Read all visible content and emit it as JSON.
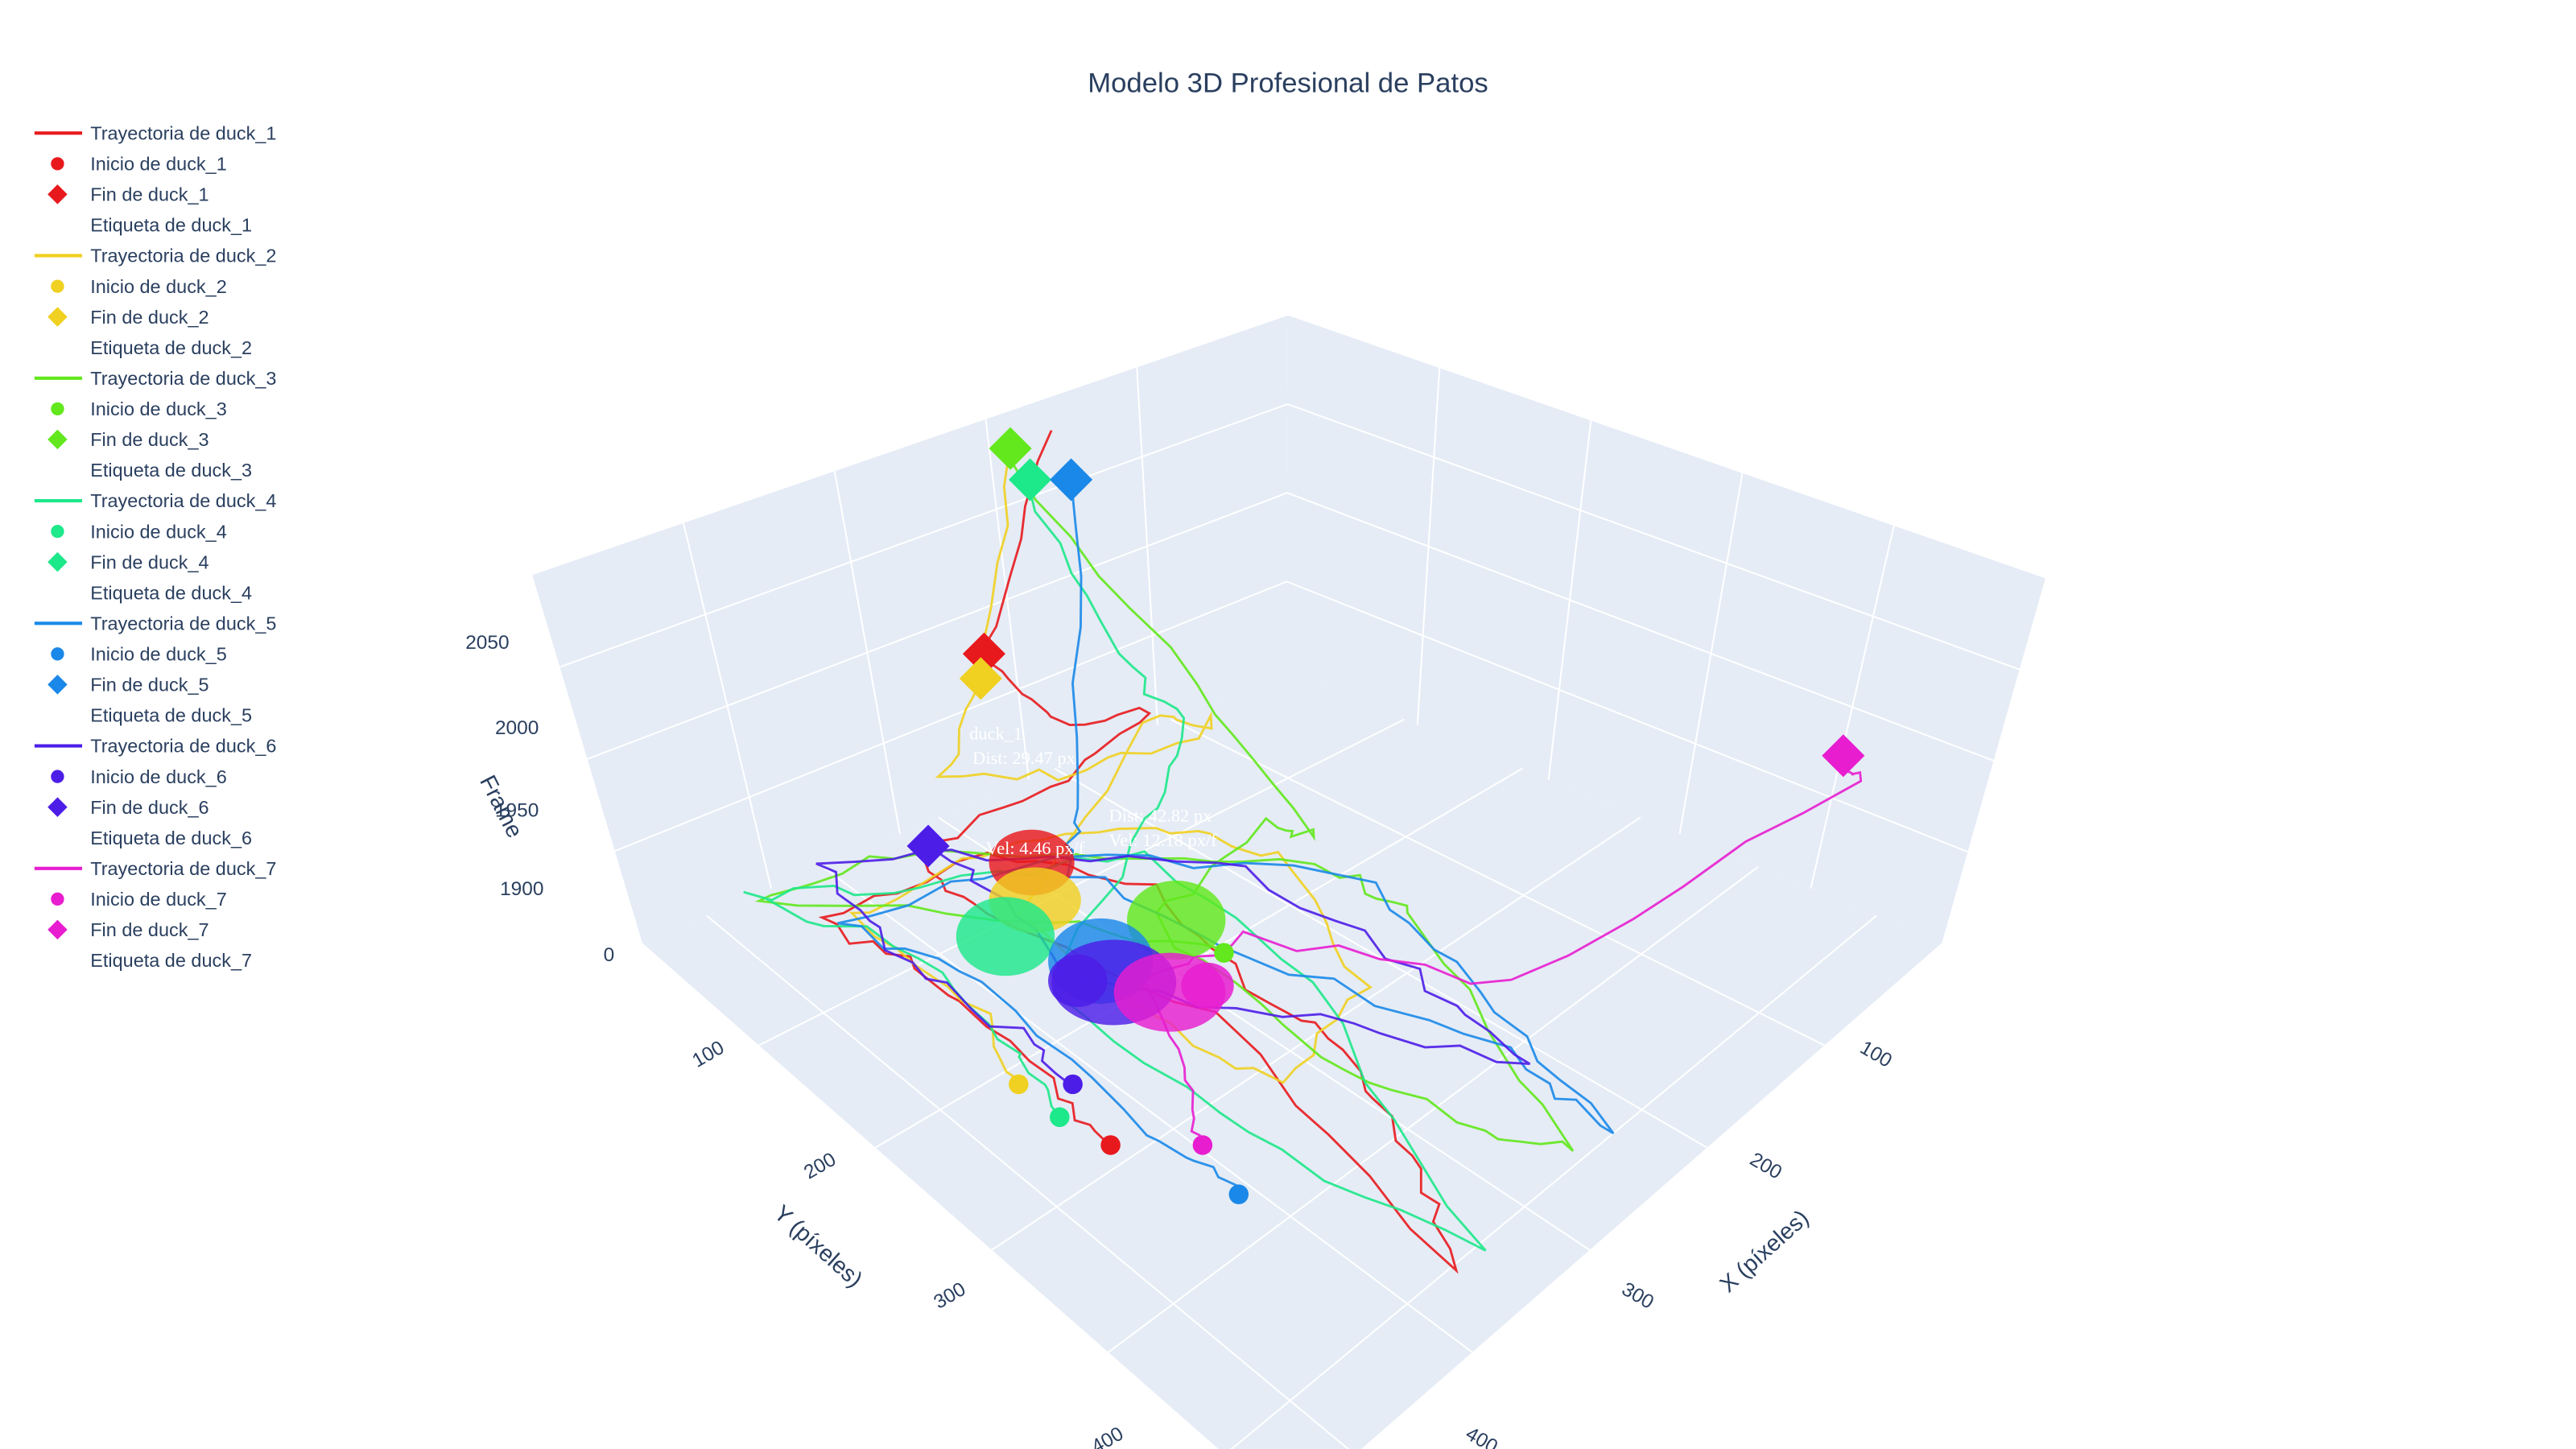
{
  "chart_data": {
    "type": "scatter3d",
    "title": "Modelo 3D Profesional de Patos",
    "axes": {
      "x": {
        "title": "X (píxeles)",
        "ticks": [
          "100",
          "200",
          "300",
          "400"
        ]
      },
      "y": {
        "title": "Y (píxeles)",
        "ticks": [
          "100",
          "200",
          "300",
          "400"
        ]
      },
      "z": {
        "title": "Frame",
        "ticks": [
          "0",
          "1900",
          "1950",
          "2000",
          "2050"
        ]
      }
    },
    "legend_position": "top-left",
    "background": "#e5ecf6",
    "grid": true,
    "series": [
      {
        "name": "duck_1",
        "color": "#e8191d",
        "labels": {
          "trajectory": "Trayectoria de duck_1",
          "start": "Inicio de duck_1",
          "end": "Fin de duck_1",
          "tag": "Etiqueta de duck_1"
        }
      },
      {
        "name": "duck_2",
        "color": "#f0d020",
        "labels": {
          "trajectory": "Trayectoria de duck_2",
          "start": "Inicio de duck_2",
          "end": "Fin de duck_2",
          "tag": "Etiqueta de duck_2"
        }
      },
      {
        "name": "duck_3",
        "color": "#62e81c",
        "labels": {
          "trajectory": "Trayectoria de duck_3",
          "start": "Inicio de duck_3",
          "end": "Fin de duck_3",
          "tag": "Etiqueta de duck_3"
        }
      },
      {
        "name": "duck_4",
        "color": "#1de88a",
        "labels": {
          "trajectory": "Trayectoria de duck_4",
          "start": "Inicio de duck_4",
          "end": "Fin de duck_4",
          "tag": "Etiqueta de duck_4"
        }
      },
      {
        "name": "duck_5",
        "color": "#1a88e8",
        "labels": {
          "trajectory": "Trayectoria de duck_5",
          "start": "Inicio de duck_5",
          "end": "Fin de duck_5",
          "tag": "Etiqueta de duck_5"
        }
      },
      {
        "name": "duck_6",
        "color": "#4d1de8",
        "labels": {
          "trajectory": "Trayectoria de duck_6",
          "start": "Inicio de duck_6",
          "end": "Fin de duck_6",
          "tag": "Etiqueta de duck_6"
        }
      },
      {
        "name": "duck_7",
        "color": "#e81dd0",
        "labels": {
          "trajectory": "Trayectoria de duck_7",
          "start": "Inicio de duck_7",
          "end": "Fin de duck_7",
          "tag": "Etiqueta de duck_7"
        }
      }
    ],
    "annotations": [
      "duck_1",
      "Dist: 42.82 px",
      "Dist: 29.47 px",
      "Vel: 12.18 px/f",
      "Vel: 4.46 px/f"
    ]
  }
}
